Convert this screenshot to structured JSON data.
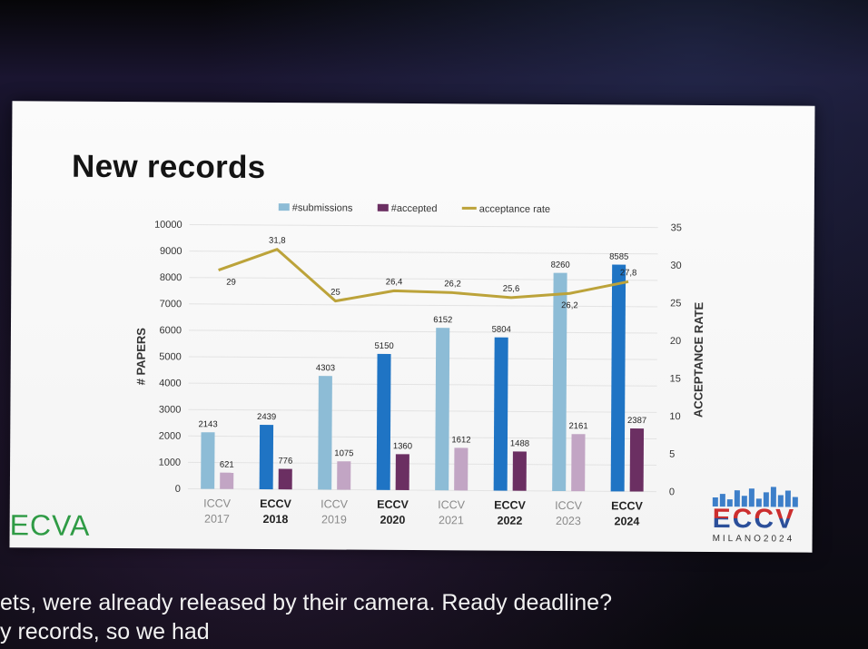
{
  "slide": {
    "title": "New records",
    "logo_left": "ECVA",
    "logo_right_word": "ECCV",
    "logo_right_sub": "MILANO2024"
  },
  "captions": [
    "ets, were already released by their camera. Ready deadline?",
    "y records, so we had"
  ],
  "chart_data": {
    "type": "bar",
    "legend": [
      "#submissions",
      "#accepted",
      "acceptance rate"
    ],
    "legend_position": "top",
    "categories": [
      {
        "name": "ICCV",
        "year": "2017",
        "bold": false
      },
      {
        "name": "ECCV",
        "year": "2018",
        "bold": true
      },
      {
        "name": "ICCV",
        "year": "2019",
        "bold": false
      },
      {
        "name": "ECCV",
        "year": "2020",
        "bold": true
      },
      {
        "name": "ICCV",
        "year": "2021",
        "bold": false
      },
      {
        "name": "ECCV",
        "year": "2022",
        "bold": true
      },
      {
        "name": "ICCV",
        "year": "2023",
        "bold": false
      },
      {
        "name": "ECCV",
        "year": "2024",
        "bold": true
      }
    ],
    "series": [
      {
        "name": "#submissions",
        "type": "bar",
        "axis": "left",
        "values": [
          2143,
          2439,
          4303,
          5150,
          6152,
          5804,
          8260,
          8585
        ],
        "labels": [
          "2143",
          "2439",
          "4303",
          "5150",
          "6152",
          "5804",
          "8260",
          "8585"
        ]
      },
      {
        "name": "#accepted",
        "type": "bar",
        "axis": "left",
        "values": [
          621,
          776,
          1075,
          1360,
          1612,
          1488,
          2161,
          2387
        ],
        "labels": [
          "621",
          "776",
          "1075",
          "1360",
          "1612",
          "1488",
          "2161",
          "2387"
        ]
      },
      {
        "name": "acceptance rate",
        "type": "line",
        "axis": "right",
        "values": [
          29,
          31.8,
          25,
          26.4,
          26.2,
          25.6,
          26.2,
          27.8
        ],
        "labels": [
          "29",
          "31,8",
          "25",
          "26,4",
          "26,2",
          "25,6",
          "26,2",
          "27,8"
        ]
      }
    ],
    "ylabel": "# PAPERS",
    "ylabel_right": "ACCEPTANCE RATE",
    "ylim": [
      0,
      10000
    ],
    "yticks": [
      "0",
      "1000",
      "2000",
      "3000",
      "4000",
      "5000",
      "6000",
      "7000",
      "8000",
      "9000",
      "10000"
    ],
    "ylim_right": [
      0,
      35
    ],
    "yticks_right": [
      "0",
      "5",
      "10",
      "15",
      "20",
      "25",
      "30",
      "35"
    ],
    "grid": true,
    "colors": {
      "sub_iccv": "#8dbcd6",
      "sub_eccv": "#1f74c4",
      "acc_iccv": "#c2a5c4",
      "acc_eccv": "#6b2f62",
      "rate_line": "#bca33a",
      "legend_sub": "#8dbcd6",
      "legend_acc": "#6b2f62"
    }
  }
}
